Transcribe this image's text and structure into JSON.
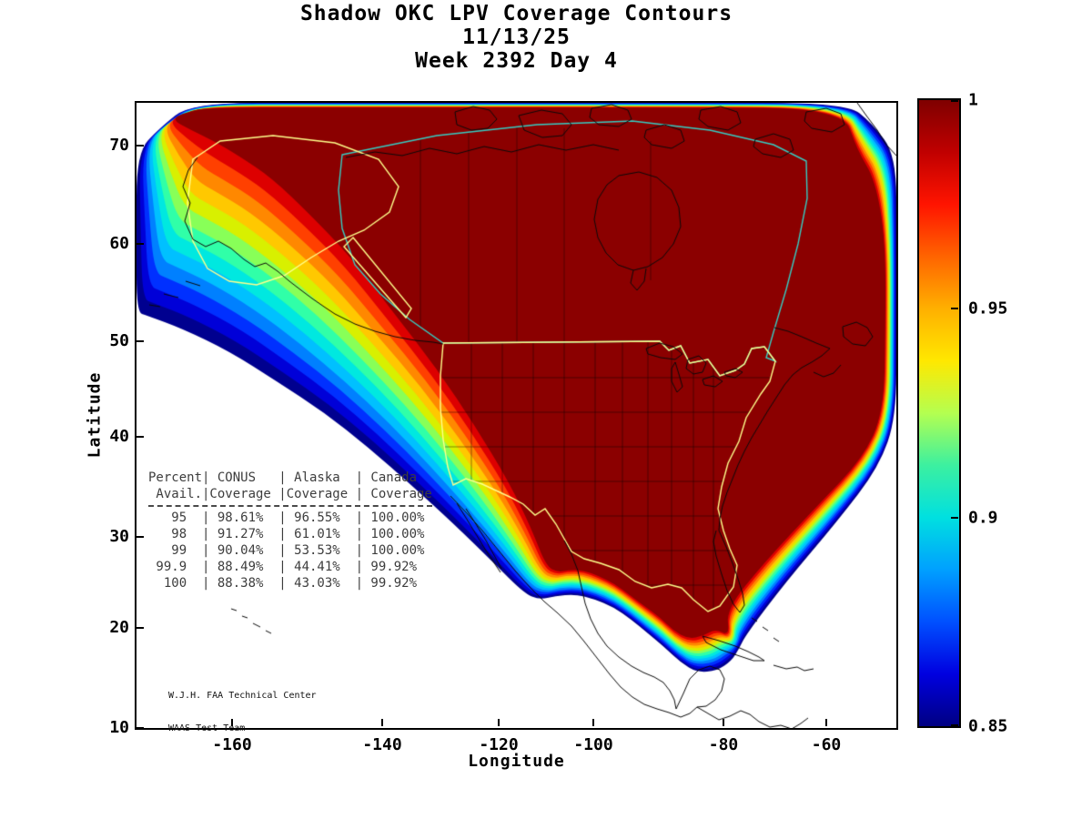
{
  "chart_data": {
    "type": "heatmap",
    "subtype": "filled contour coverage map of North America",
    "title": "Shadow OKC LPV Coverage Contours",
    "subtitle_date": "11/13/25",
    "subtitle_week": "Week 2392 Day 4",
    "xlabel": "Longitude",
    "ylabel": "Latitude",
    "x_ticks": [
      -160,
      -140,
      -120,
      -100,
      -80,
      -60
    ],
    "y_ticks": [
      70,
      60,
      50,
      40,
      30,
      20,
      10
    ],
    "grid": false,
    "legend_position": "colorbar-right",
    "colorbar": {
      "min": 0.85,
      "max": 1,
      "ticks": [
        1,
        0.95,
        0.9,
        0.85
      ],
      "colormap": "jet",
      "gradient_top_to_bottom": [
        "#7f0000",
        "#c00000",
        "#ff1400",
        "#ff6400",
        "#ffb000",
        "#ffe800",
        "#b4ff50",
        "#3cf0a0",
        "#00e0e0",
        "#00a0ff",
        "#0050ff",
        "#0000e0",
        "#000082"
      ],
      "band_colors_low_to_high": [
        "#00008f",
        "#0000d8",
        "#0030ff",
        "#0080ff",
        "#00c0ff",
        "#00e8e0",
        "#30ffa8",
        "#88ff58",
        "#d8f000",
        "#ffc800",
        "#ff8800",
        "#ff4000",
        "#dd0000",
        "#8b0000"
      ]
    },
    "coverage_table": {
      "header_row1": [
        "Percent",
        "CONUS",
        "Alaska",
        "Canada"
      ],
      "header_row2": [
        "Avail.",
        "Coverage",
        "Coverage",
        "Coverage"
      ],
      "rows": [
        [
          "95",
          "98.61%",
          "96.55%",
          "100.00%"
        ],
        [
          "98",
          "91.27%",
          "61.01%",
          "100.00%"
        ],
        [
          "99",
          "90.04%",
          "53.53%",
          "100.00%"
        ],
        [
          "99.9",
          "88.49%",
          "44.41%",
          "99.92%"
        ],
        [
          "100",
          "88.38%",
          "43.03%",
          "99.92%"
        ]
      ]
    },
    "annotations": [
      "W.J.H. FAA Technical Center",
      "WAAS Test Team"
    ],
    "regions_outlined": [
      "CONUS",
      "Alaska",
      "Canada"
    ],
    "overlay_colors": {
      "conus_alaska_outline": "#ffff8c",
      "canada_outline": "#35cdc3",
      "coastlines": "#0a0a0a"
    }
  }
}
